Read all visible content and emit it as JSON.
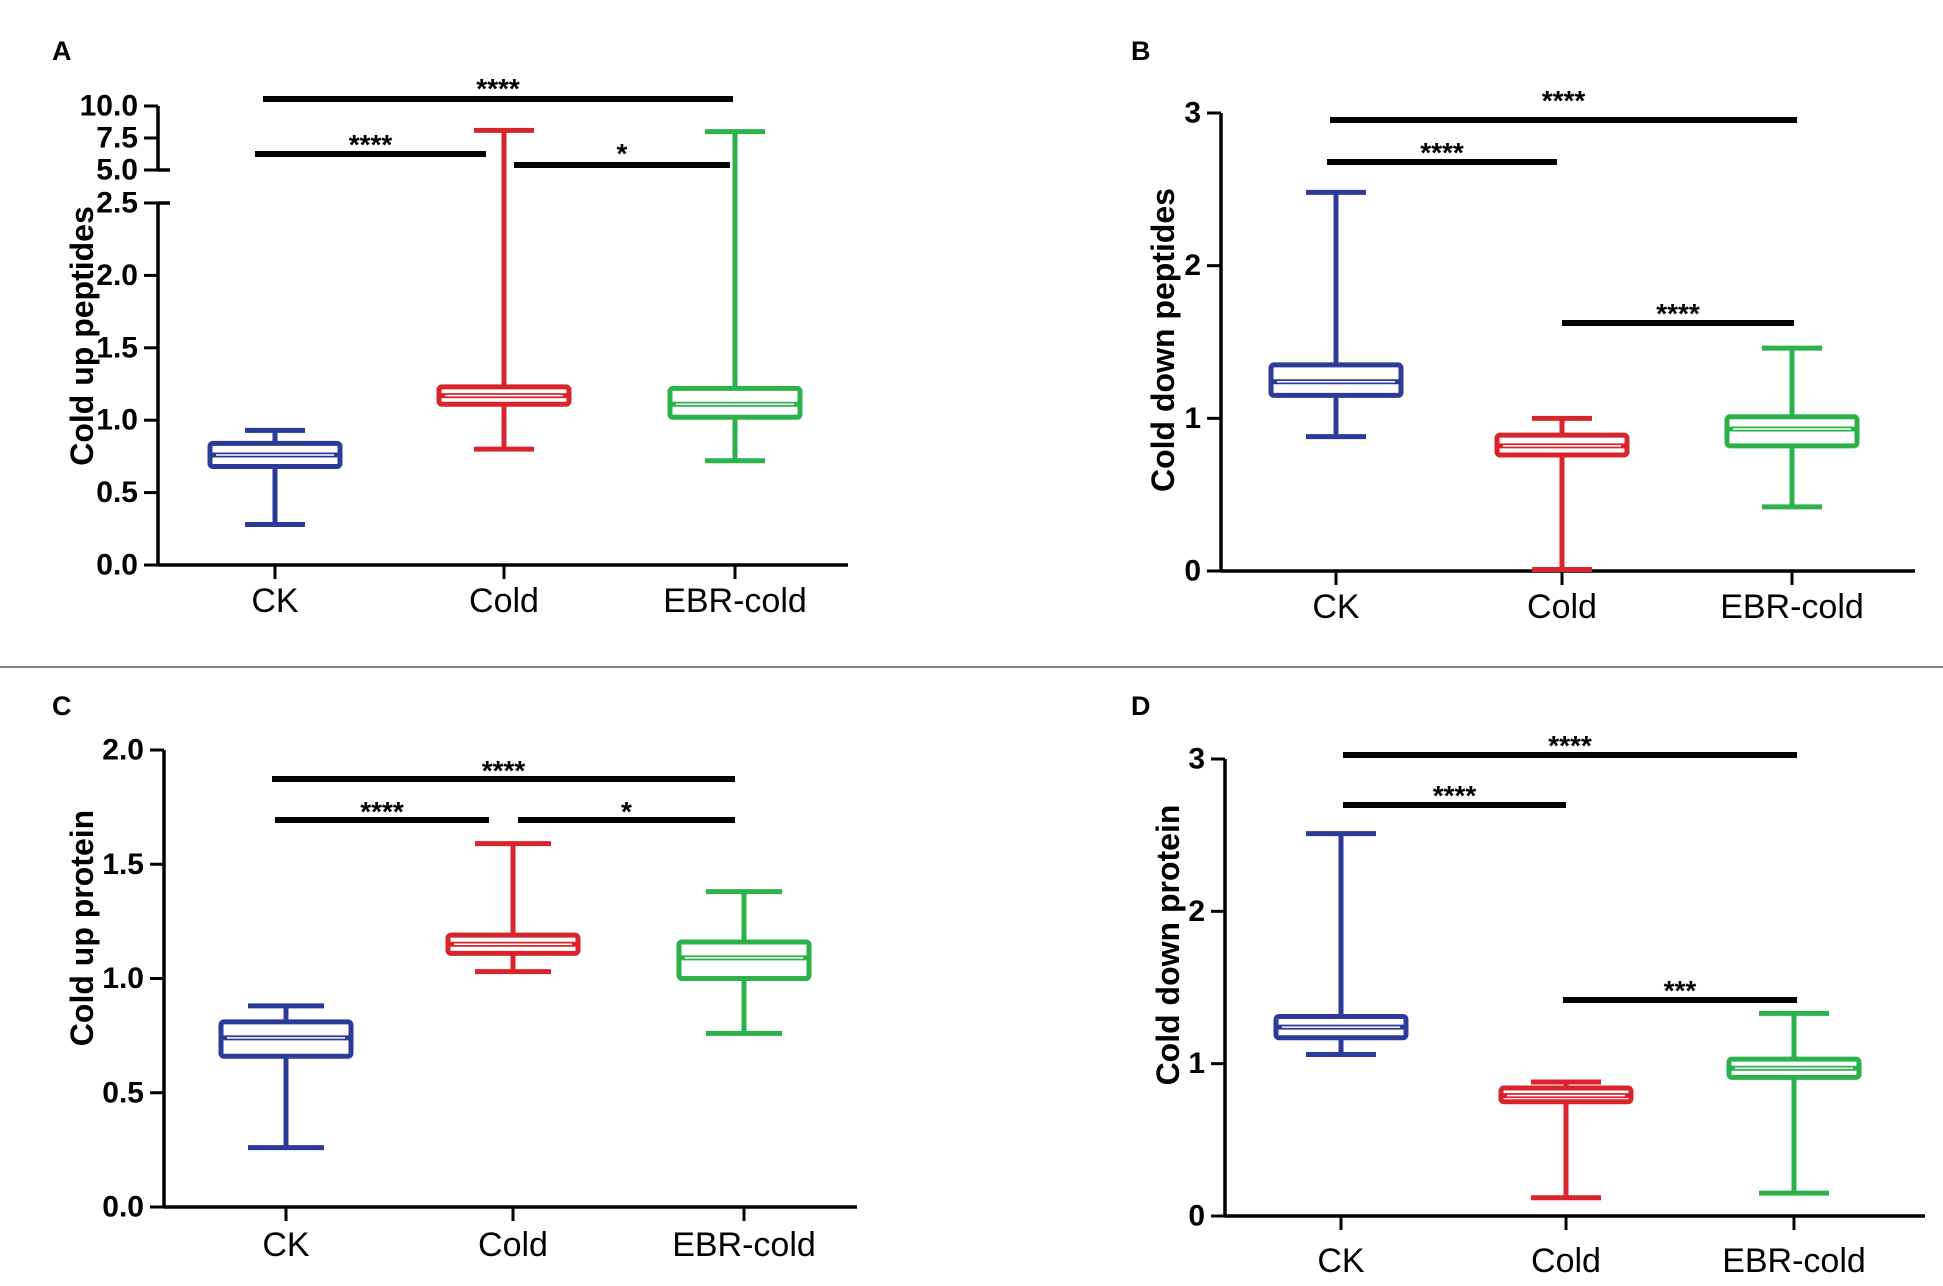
{
  "colors": {
    "CK": "#2e3a97",
    "Cold": "#d9242c",
    "EBR-cold": "#2bb24a",
    "axis": "#000000"
  },
  "chart_data": [
    {
      "panel": "A",
      "type": "boxplot",
      "ylabel": "Cold up peptides",
      "categories": [
        "CK",
        "Cold",
        "EBR-cold"
      ],
      "axis_break": {
        "lower_range": [
          0,
          2.5
        ],
        "upper_range": [
          5.0,
          10.0
        ]
      },
      "ticks_lower": [
        "0.0",
        "0.5",
        "1.0",
        "1.5",
        "2.0",
        "2.5"
      ],
      "ticks_upper": [
        "5.0",
        "7.5",
        "10.0"
      ],
      "boxes": [
        {
          "name": "CK",
          "min": 0.28,
          "q1": 0.68,
          "median": 0.76,
          "q3": 0.84,
          "max": 0.93
        },
        {
          "name": "Cold",
          "min": 0.8,
          "q1": 1.11,
          "median": 1.17,
          "q3": 1.23,
          "max": 8.1
        },
        {
          "name": "EBR-cold",
          "min": 0.72,
          "q1": 1.02,
          "median": 1.11,
          "q3": 1.22,
          "max": 8.0
        }
      ],
      "significance": [
        {
          "from": "CK",
          "to": "Cold",
          "label": "****"
        },
        {
          "from": "Cold",
          "to": "EBR-cold",
          "label": "*"
        },
        {
          "from": "CK",
          "to": "EBR-cold",
          "label": "****"
        }
      ]
    },
    {
      "panel": "B",
      "type": "boxplot",
      "ylabel": "Cold down peptides",
      "categories": [
        "CK",
        "Cold",
        "EBR-cold"
      ],
      "ylim": [
        0,
        3
      ],
      "ticks": [
        "0",
        "1",
        "2",
        "3"
      ],
      "boxes": [
        {
          "name": "CK",
          "min": 0.88,
          "q1": 1.15,
          "median": 1.24,
          "q3": 1.35,
          "max": 2.48
        },
        {
          "name": "Cold",
          "min": 0.01,
          "q1": 0.76,
          "median": 0.82,
          "q3": 0.89,
          "max": 1.0
        },
        {
          "name": "EBR-cold",
          "min": 0.42,
          "q1": 0.82,
          "median": 0.93,
          "q3": 1.01,
          "max": 1.46
        }
      ],
      "significance": [
        {
          "from": "CK",
          "to": "Cold",
          "label": "****"
        },
        {
          "from": "Cold",
          "to": "EBR-cold",
          "label": "****"
        },
        {
          "from": "CK",
          "to": "EBR-cold",
          "label": "****"
        }
      ]
    },
    {
      "panel": "C",
      "type": "boxplot",
      "ylabel": "Cold up protein",
      "categories": [
        "CK",
        "Cold",
        "EBR-cold"
      ],
      "ylim": [
        0,
        2.0
      ],
      "ticks": [
        "0.0",
        "0.5",
        "1.0",
        "1.5",
        "2.0"
      ],
      "boxes": [
        {
          "name": "CK",
          "min": 0.26,
          "q1": 0.66,
          "median": 0.74,
          "q3": 0.81,
          "max": 0.88
        },
        {
          "name": "Cold",
          "min": 1.03,
          "q1": 1.11,
          "median": 1.15,
          "q3": 1.19,
          "max": 1.59
        },
        {
          "name": "EBR-cold",
          "min": 0.76,
          "q1": 1.0,
          "median": 1.09,
          "q3": 1.16,
          "max": 1.38
        }
      ],
      "significance": [
        {
          "from": "CK",
          "to": "Cold",
          "label": "****"
        },
        {
          "from": "Cold",
          "to": "EBR-cold",
          "label": "*"
        },
        {
          "from": "CK",
          "to": "EBR-cold",
          "label": "****"
        }
      ]
    },
    {
      "panel": "D",
      "type": "boxplot",
      "ylabel": "Cold down protein",
      "categories": [
        "CK",
        "Cold",
        "EBR-cold"
      ],
      "ylim": [
        0,
        3
      ],
      "ticks": [
        "0",
        "1",
        "2",
        "3"
      ],
      "boxes": [
        {
          "name": "CK",
          "min": 1.06,
          "q1": 1.17,
          "median": 1.24,
          "q3": 1.31,
          "max": 2.51
        },
        {
          "name": "Cold",
          "min": 0.12,
          "q1": 0.75,
          "median": 0.79,
          "q3": 0.84,
          "max": 0.88
        },
        {
          "name": "EBR-cold",
          "min": 0.15,
          "q1": 0.91,
          "median": 0.97,
          "q3": 1.03,
          "max": 1.33
        }
      ],
      "significance": [
        {
          "from": "CK",
          "to": "Cold",
          "label": "****"
        },
        {
          "from": "Cold",
          "to": "EBR-cold",
          "label": "***"
        },
        {
          "from": "CK",
          "to": "EBR-cold",
          "label": "****"
        }
      ]
    }
  ]
}
